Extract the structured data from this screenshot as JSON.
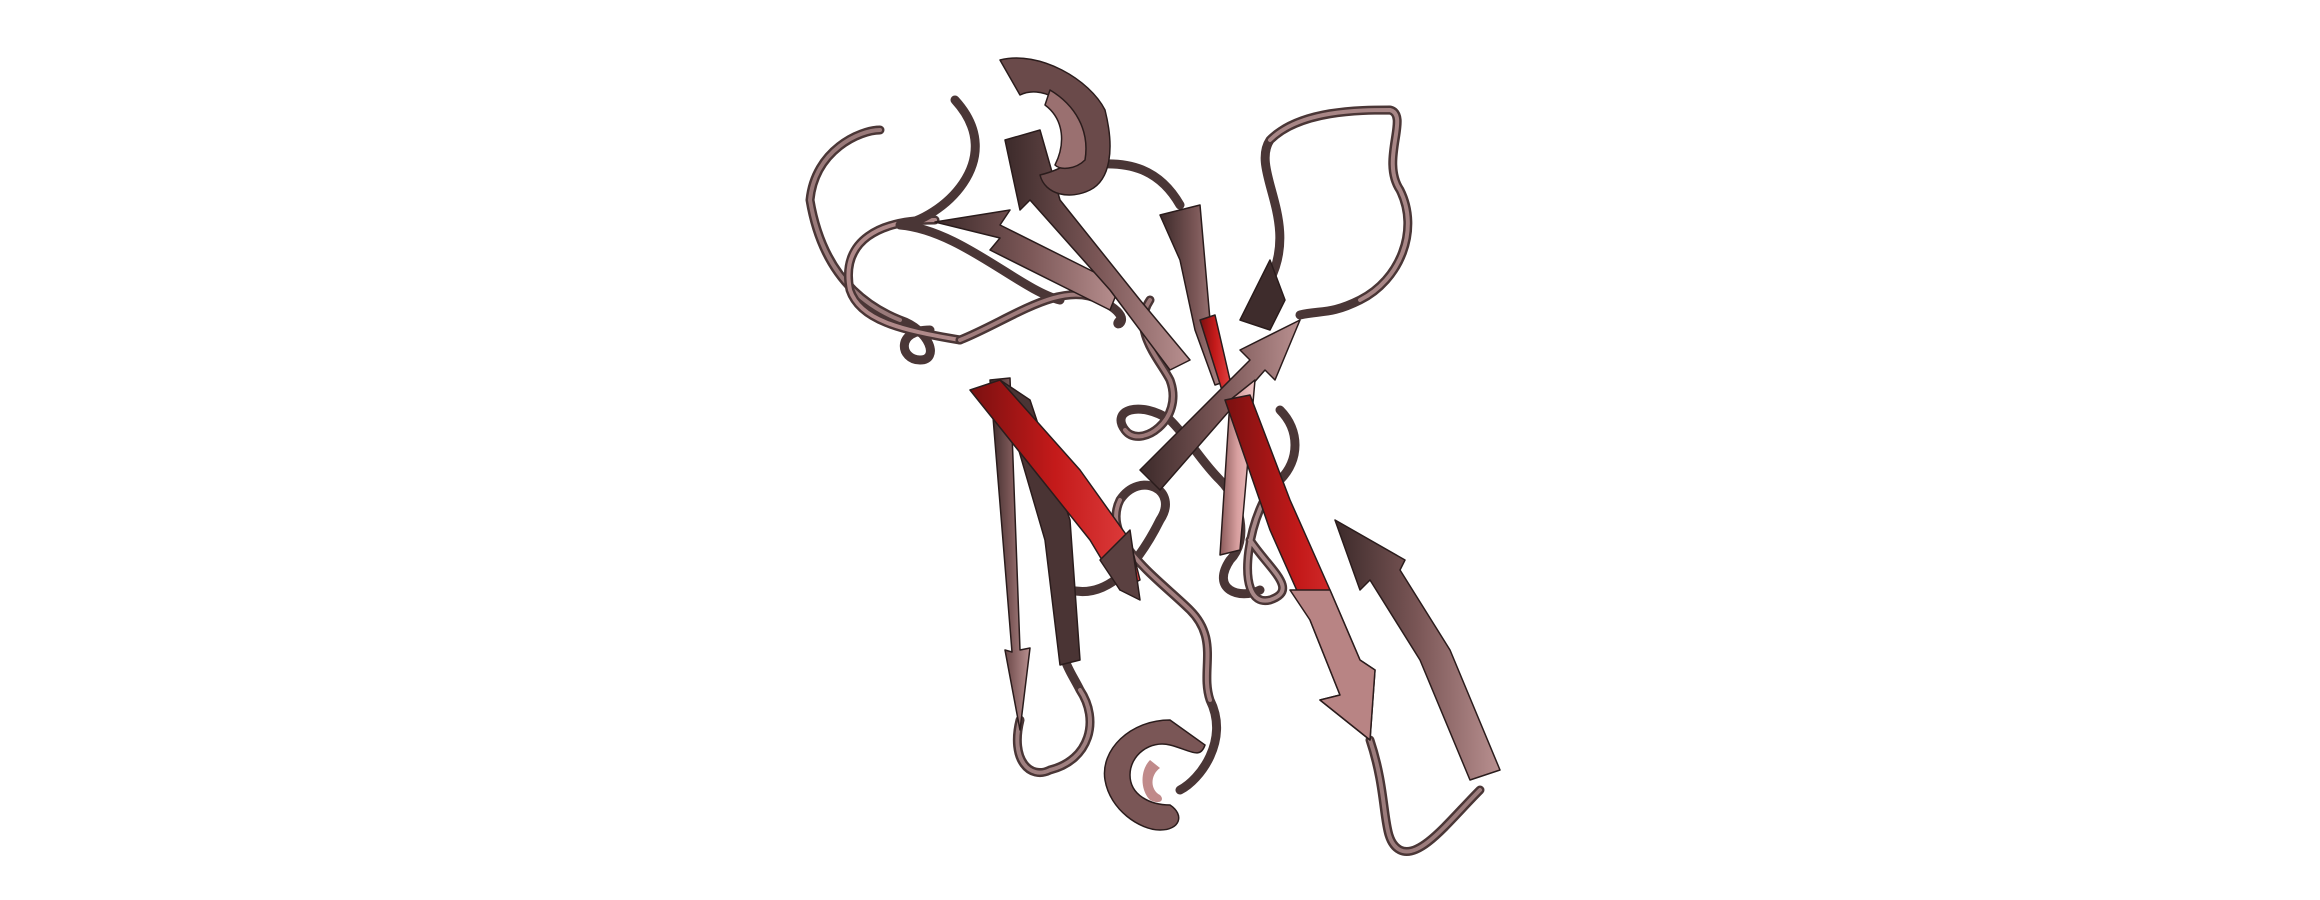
{
  "scene": {
    "subject": "protein-cartoon",
    "background_color": "#ffffff",
    "colors": {
      "strand_base": "#7a5656",
      "strand_dark": "#3c2a2a",
      "strand_light": "#b99090",
      "highlight_red": "#c41a1a",
      "highlight_pink": "#e8b4b4",
      "loop_tube": "#8a6a6a",
      "loop_dark": "#4a3636"
    }
  }
}
